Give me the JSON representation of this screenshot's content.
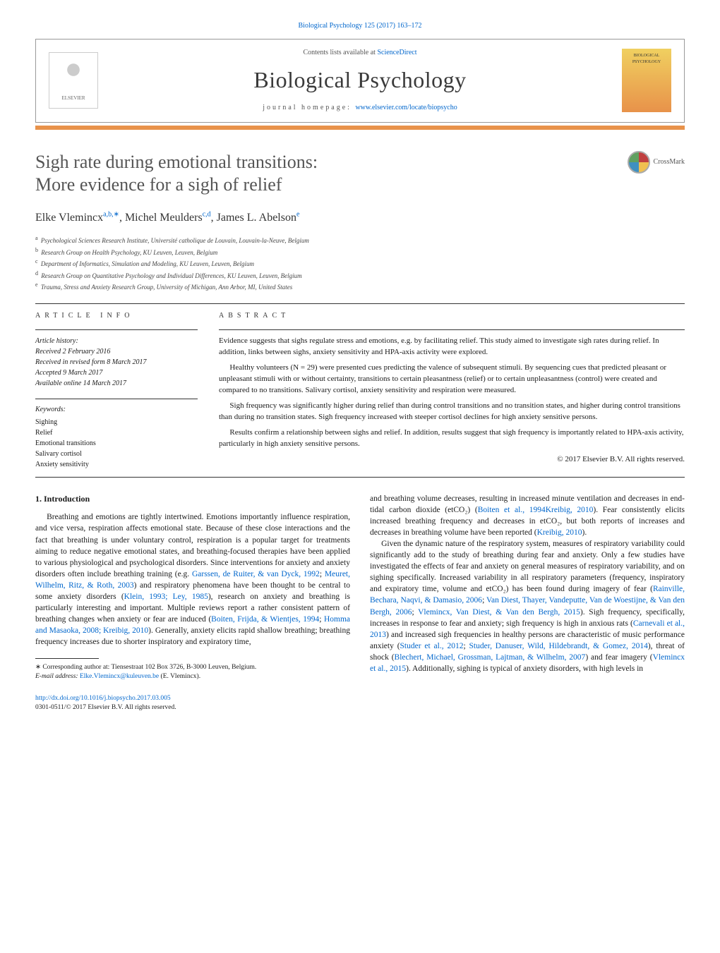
{
  "header": {
    "journal_ref": "Biological Psychology 125 (2017) 163–172",
    "contents_prefix": "Contents lists available at ",
    "contents_link": "ScienceDirect",
    "journal_name": "Biological Psychology",
    "homepage_prefix": "journal homepage: ",
    "homepage_url": "www.elsevier.com/locate/biopsycho",
    "elsevier_label": "ELSEVIER",
    "cover_label1": "BIOLOGICAL",
    "cover_label2": "PSYCHOLOGY"
  },
  "crossmark": {
    "label": "CrossMark"
  },
  "title": {
    "line1": "Sigh rate during emotional transitions:",
    "line2": "More evidence for a sigh of relief"
  },
  "authors": {
    "a1_name": "Elke Vlemincx",
    "a1_sup": "a,b,∗",
    "a2_name": "Michel Meulders",
    "a2_sup": "c,d",
    "a3_name": "James L. Abelson",
    "a3_sup": "e"
  },
  "affiliations": {
    "a": "Psychological Sciences Research Institute, Université catholique de Louvain, Louvain-la-Neuve, Belgium",
    "b": "Research Group on Health Psychology, KU Leuven, Leuven, Belgium",
    "c": "Department of Informatics, Simulation and Modeling, KU Leuven, Leuven, Belgium",
    "d": "Research Group on Quantitative Psychology and Individual Differences, KU Leuven, Leuven, Belgium",
    "e": "Trauma, Stress and Anxiety Research Group, University of Michigan, Ann Arbor, MI, United States"
  },
  "info": {
    "heading": "article info",
    "history_label": "Article history:",
    "received": "Received 2 February 2016",
    "revised": "Received in revised form 8 March 2017",
    "accepted": "Accepted 9 March 2017",
    "online": "Available online 14 March 2017",
    "keywords_label": "Keywords:",
    "kw1": "Sighing",
    "kw2": "Relief",
    "kw3": "Emotional transitions",
    "kw4": "Salivary cortisol",
    "kw5": "Anxiety sensitivity"
  },
  "abstract": {
    "heading": "abstract",
    "p1": "Evidence suggests that sighs regulate stress and emotions, e.g. by facilitating relief. This study aimed to investigate sigh rates during relief. In addition, links between sighs, anxiety sensitivity and HPA-axis activity were explored.",
    "p2": "Healthy volunteers (N = 29) were presented cues predicting the valence of subsequent stimuli. By sequencing cues that predicted pleasant or unpleasant stimuli with or without certainty, transitions to certain pleasantness (relief) or to certain unpleasantness (control) were created and compared to no transitions. Salivary cortisol, anxiety sensitivity and respiration were measured.",
    "p3": "Sigh frequency was significantly higher during relief than during control transitions and no transition states, and higher during control transitions than during no transition states. Sigh frequency increased with steeper cortisol declines for high anxiety sensitive persons.",
    "p4": "Results confirm a relationship between sighs and relief. In addition, results suggest that sigh frequency is importantly related to HPA-axis activity, particularly in high anxiety sensitive persons.",
    "copyright": "© 2017 Elsevier B.V. All rights reserved."
  },
  "body": {
    "section_heading": "1. Introduction",
    "p1_a": "Breathing and emotions are tightly intertwined. Emotions importantly influence respiration, and vice versa, respiration affects emotional state. Because of these close interactions and the fact that breathing is under voluntary control, respiration is a popular target for treatments aiming to reduce negative emotional states, and breathing-focused therapies have been applied to various physiological and psychological disorders. Since interventions for anxiety and anxiety disorders often include breathing training (e.g. ",
    "p1_link1": "Garssen, de Ruiter, & van Dyck, 1992",
    "p1_b": "; ",
    "p1_link2": "Meuret, Wilhelm, Ritz, & Roth, 2003",
    "p1_c": ") and respiratory phenomena have been thought to be central to some anxiety disorders (",
    "p1_link3": "Klein, 1993; Ley, 1985",
    "p1_d": "), research on anxiety and breathing is particularly interesting and important. Multiple reviews report a rather consistent pattern of breathing changes when anxiety or fear are induced (",
    "p1_link4": "Boiten, Frijda, & Wientjes, 1994",
    "p1_e": "; ",
    "p1_link5": "Homma and Masaoka, 2008; Kreibig, 2010",
    "p1_f": "). Generally, anxiety elicits rapid shallow breathing; breathing frequency increases due to shorter inspiratory and expiratory time,",
    "p1_g": "and breathing volume decreases, resulting in increased minute ventilation and decreases in end-tidal carbon dioxide (etCO₂) (",
    "p1_link6": "Boiten et al., 1994Kreibig, 2010",
    "p1_h": "). Fear consistently elicits increased breathing frequency and decreases in etCO₂, but both reports of increases and decreases in breathing volume have been reported (",
    "p1_link7": "Kreibig, 2010",
    "p1_i": ").",
    "p2_a": "Given the dynamic nature of the respiratory system, measures of respiratory variability could significantly add to the study of breathing during fear and anxiety. Only a few studies have investigated the effects of fear and anxiety on general measures of respiratory variability, and on sighing specifically. Increased variability in all respiratory parameters (frequency, inspiratory and expiratory time, volume and etCO₂) has been found during imagery of fear (",
    "p2_link1": "Rainville, Bechara, Naqvi, & Damasio, 2006",
    "p2_b": "; ",
    "p2_link2": "Van Diest, Thayer, Vandeputte, Van de Woestijne, & Van den Bergh, 2006",
    "p2_c": "; ",
    "p2_link3": "Vlemincx, Van Diest, & Van den Bergh, 2015",
    "p2_d": "). Sigh frequency, specifically, increases in response to fear and anxiety; sigh frequency is high in anxious rats (",
    "p2_link4": "Carnevali et al., 2013",
    "p2_e": ") and increased sigh frequencies in healthy persons are characteristic of music performance anxiety (",
    "p2_link5": "Studer et al., 2012",
    "p2_f": "; ",
    "p2_link6": "Studer, Danuser, Wild, Hildebrandt, & Gomez, 2014",
    "p2_g": "), threat of shock (",
    "p2_link7": "Blechert, Michael, Grossman, Lajtman, & Wilhelm, 2007",
    "p2_h": ") and fear imagery (",
    "p2_link8": "Vlemincx et al., 2015",
    "p2_i": "). Additionally, sighing is typical of anxiety disorders, with high levels in"
  },
  "footnote": {
    "text_a": "∗ Corresponding author at: Tiensestraat 102 Box 3726, B-3000 Leuven, Belgium.",
    "text_b": "E-mail address: ",
    "email": "Elke.Vlemincx@kuleuven.be",
    "text_c": " (E. Vlemincx)."
  },
  "footer": {
    "doi": "http://dx.doi.org/10.1016/j.biopsycho.2017.03.005",
    "issn_copyright": "0301-0511/© 2017 Elsevier B.V. All rights reserved."
  },
  "colors": {
    "link": "#0066cc",
    "accent": "#e8924a",
    "title_gray": "#555555",
    "rule": "#333333"
  }
}
